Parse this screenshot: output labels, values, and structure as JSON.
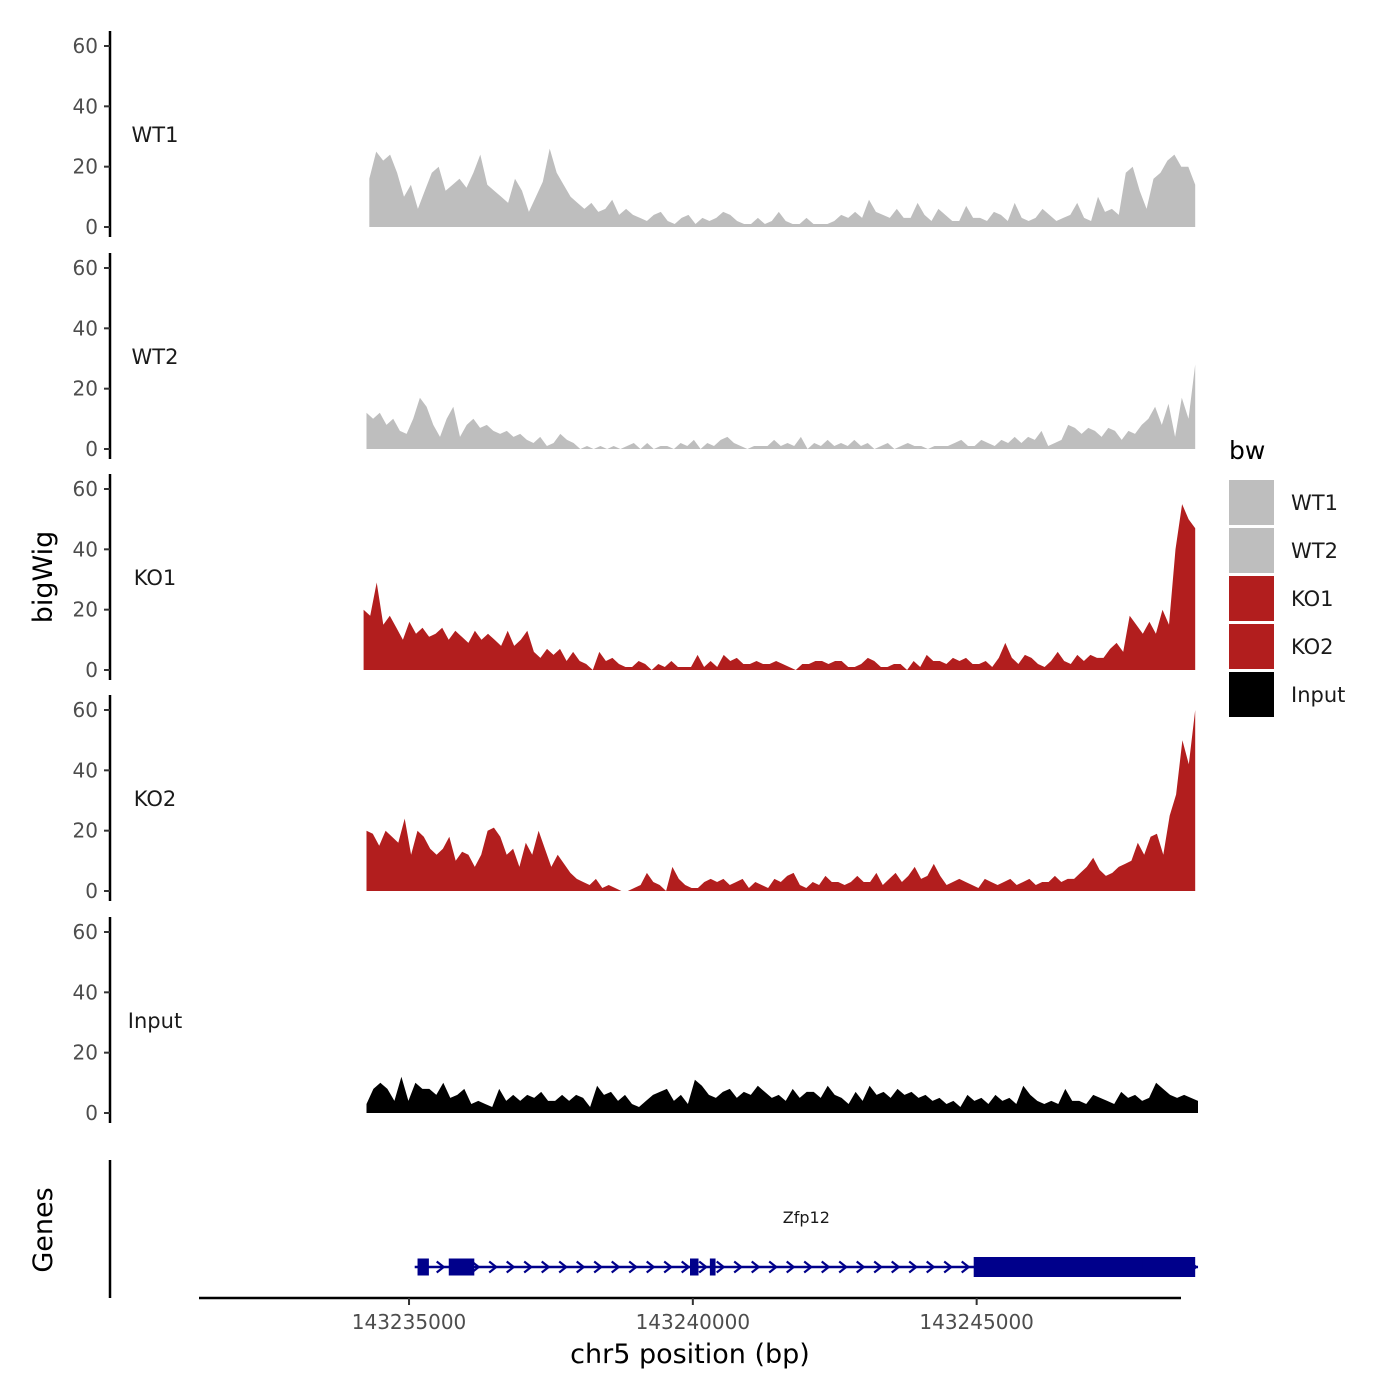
{
  "chart_data": {
    "type": "area",
    "title": "",
    "xlabel": "chr5 position (bp)",
    "ylabel": "bigWig",
    "genes_label": "Genes",
    "xlim": [
      143231300,
      143248600
    ],
    "ylim": [
      0,
      65
    ],
    "x_ticks": [
      143235000,
      143240000,
      143245000
    ],
    "x_tick_labels": [
      "143235000",
      "143240000",
      "143245000"
    ],
    "y_ticks": [
      0,
      20,
      40,
      60
    ],
    "y_tick_labels": [
      "0",
      "20",
      "40",
      "60"
    ],
    "legend": {
      "title": "bw",
      "position": "right",
      "entries": [
        {
          "label": "WT1",
          "color": "#bebebe"
        },
        {
          "label": "WT2",
          "color": "#bebebe"
        },
        {
          "label": "KO1",
          "color": "#b21e1e"
        },
        {
          "label": "KO2",
          "color": "#b21e1e"
        },
        {
          "label": "Input",
          "color": "#000000"
        }
      ]
    },
    "tracks": [
      {
        "name": "WT1",
        "color": "#bebebe",
        "x_start": 143234300,
        "x_end": 143248850,
        "values": [
          16,
          25,
          22,
          24,
          18,
          10,
          14,
          6,
          12,
          18,
          20,
          12,
          14,
          16,
          13,
          18,
          24,
          14,
          12,
          10,
          8,
          16,
          12,
          5,
          10,
          15,
          26,
          18,
          14,
          10,
          8,
          6,
          8,
          5,
          6,
          9,
          4,
          6,
          4,
          3,
          2,
          4,
          5,
          2,
          1,
          3,
          4,
          1,
          3,
          2,
          3,
          5,
          4,
          2,
          1,
          1,
          3,
          1,
          2,
          5,
          2,
          1,
          1,
          3,
          1,
          1,
          1,
          2,
          4,
          3,
          5,
          3,
          9,
          5,
          4,
          3,
          6,
          3,
          3,
          8,
          4,
          2,
          6,
          4,
          2,
          2,
          7,
          3,
          3,
          2,
          5,
          4,
          2,
          8,
          3,
          2,
          3,
          6,
          4,
          2,
          3,
          4,
          8,
          3,
          2,
          10,
          5,
          6,
          4,
          18,
          20,
          12,
          6,
          16,
          18,
          22,
          24,
          20,
          20,
          14
        ]
      },
      {
        "name": "WT2",
        "color": "#bebebe",
        "x_start": 143234250,
        "x_end": 143248850,
        "values": [
          12,
          10,
          12,
          8,
          10,
          6,
          5,
          10,
          17,
          14,
          8,
          4,
          10,
          14,
          4,
          8,
          10,
          7,
          8,
          6,
          5,
          6,
          4,
          5,
          3,
          2,
          4,
          1,
          2,
          5,
          3,
          2,
          0,
          1,
          0,
          1,
          0,
          1,
          0,
          1,
          2,
          0,
          2,
          0,
          1,
          1,
          0,
          2,
          1,
          3,
          0,
          2,
          1,
          3,
          4,
          2,
          1,
          0,
          1,
          1,
          1,
          3,
          1,
          2,
          1,
          4,
          0,
          2,
          1,
          3,
          1,
          2,
          1,
          3,
          1,
          2,
          0,
          1,
          2,
          0,
          1,
          2,
          1,
          1,
          0,
          1,
          1,
          1,
          2,
          3,
          1,
          1,
          3,
          2,
          1,
          3,
          2,
          4,
          2,
          4,
          3,
          6,
          1,
          2,
          3,
          8,
          7,
          5,
          7,
          6,
          4,
          7,
          6,
          3,
          6,
          5,
          8,
          10,
          14,
          8,
          15,
          4,
          17,
          10,
          28
        ]
      },
      {
        "name": "KO1",
        "color": "#b21e1e",
        "x_start": 143234200,
        "x_end": 143248850,
        "values": [
          20,
          18,
          29,
          15,
          18,
          14,
          10,
          16,
          12,
          14,
          11,
          12,
          14,
          10,
          13,
          11,
          9,
          13,
          10,
          12,
          10,
          8,
          13,
          8,
          10,
          13,
          6,
          4,
          7,
          5,
          7,
          3,
          6,
          3,
          2,
          0,
          6,
          3,
          4,
          2,
          1,
          1,
          3,
          2,
          0,
          2,
          1,
          3,
          1,
          1,
          1,
          5,
          1,
          3,
          1,
          5,
          3,
          4,
          2,
          2,
          3,
          2,
          2,
          3,
          2,
          1,
          0,
          2,
          2,
          3,
          3,
          2,
          3,
          3,
          1,
          1,
          2,
          4,
          3,
          1,
          1,
          2,
          2,
          0,
          3,
          1,
          5,
          3,
          3,
          2,
          4,
          3,
          4,
          2,
          2,
          3,
          1,
          4,
          9,
          4,
          2,
          5,
          4,
          2,
          1,
          3,
          6,
          3,
          2,
          5,
          3,
          5,
          4,
          4,
          7,
          9,
          6,
          18,
          15,
          12,
          16,
          12,
          20,
          15,
          40,
          55,
          50,
          47
        ]
      },
      {
        "name": "KO2",
        "color": "#b21e1e",
        "x_start": 143234250,
        "x_end": 143248850,
        "values": [
          20,
          19,
          15,
          20,
          18,
          16,
          24,
          12,
          20,
          18,
          14,
          12,
          14,
          18,
          10,
          13,
          12,
          8,
          12,
          20,
          21,
          18,
          12,
          14,
          8,
          16,
          12,
          20,
          14,
          8,
          12,
          9,
          6,
          4,
          3,
          2,
          4,
          1,
          2,
          1,
          0,
          0,
          1,
          2,
          6,
          3,
          2,
          0,
          8,
          4,
          2,
          1,
          1,
          3,
          4,
          3,
          4,
          2,
          3,
          4,
          1,
          3,
          2,
          1,
          4,
          3,
          5,
          6,
          2,
          1,
          3,
          2,
          5,
          3,
          3,
          2,
          3,
          5,
          3,
          3,
          6,
          2,
          4,
          6,
          3,
          5,
          8,
          4,
          5,
          9,
          5,
          2,
          3,
          4,
          3,
          2,
          1,
          4,
          3,
          2,
          3,
          4,
          2,
          3,
          4,
          2,
          3,
          3,
          5,
          3,
          4,
          4,
          6,
          8,
          11,
          7,
          5,
          6,
          8,
          9,
          10,
          16,
          12,
          18,
          19,
          12,
          25,
          32,
          50,
          42,
          60
        ]
      },
      {
        "name": "Input",
        "color": "#000000",
        "x_start": 143234250,
        "x_end": 143248900,
        "values": [
          3,
          8,
          10,
          8,
          4,
          12,
          4,
          10,
          8,
          8,
          6,
          10,
          5,
          6,
          8,
          3,
          4,
          3,
          2,
          8,
          4,
          6,
          4,
          6,
          5,
          7,
          4,
          4,
          6,
          4,
          6,
          5,
          2,
          9,
          6,
          7,
          4,
          6,
          3,
          2,
          4,
          6,
          7,
          8,
          4,
          6,
          3,
          11,
          9,
          6,
          5,
          7,
          8,
          5,
          7,
          6,
          9,
          7,
          5,
          6,
          4,
          8,
          5,
          7,
          7,
          5,
          9,
          6,
          5,
          3,
          7,
          4,
          9,
          6,
          7,
          5,
          8,
          6,
          7,
          5,
          6,
          4,
          5,
          3,
          4,
          2,
          6,
          4,
          5,
          3,
          6,
          4,
          5,
          3,
          9,
          6,
          4,
          3,
          4,
          3,
          8,
          4,
          4,
          3,
          6,
          5,
          4,
          3,
          7,
          5,
          6,
          4,
          5,
          10,
          8,
          6,
          5,
          6,
          5,
          4
        ]
      }
    ],
    "gene": {
      "name": "Zfp12",
      "strand": "+",
      "color": "#00008b",
      "start": 143235100,
      "end": 143248900,
      "exons": [
        {
          "start": 143235150,
          "end": 143235350,
          "type": "utr"
        },
        {
          "start": 143235700,
          "end": 143236150,
          "type": "utr"
        },
        {
          "start": 143239950,
          "end": 143240100,
          "type": "utr"
        },
        {
          "start": 143240300,
          "end": 143240400,
          "type": "utr"
        },
        {
          "start": 143244950,
          "end": 143248850,
          "type": "cds"
        }
      ]
    }
  }
}
